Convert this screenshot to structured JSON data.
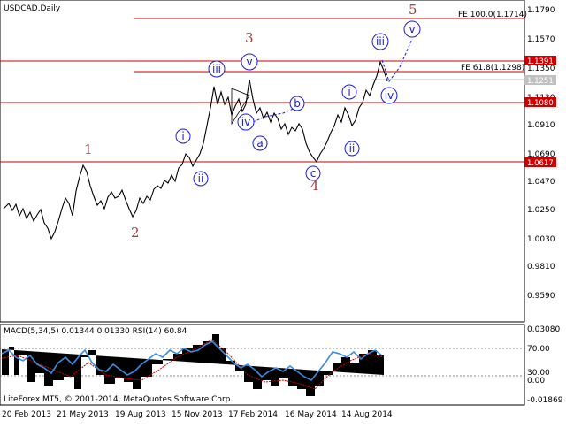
{
  "chart_title": "USDCAD,Daily",
  "price_axis": {
    "ticks": [
      "1.1790",
      "1.1570",
      "1.1350",
      "1.1130",
      "1.0910",
      "1.0690",
      "1.0470",
      "1.0250",
      "1.0030",
      "0.9810",
      "0.9590"
    ],
    "badges": [
      {
        "label": "1.1391",
        "color": "#cc0000"
      },
      {
        "label": "1.1251",
        "color": "#c0c0c0"
      },
      {
        "label": "1.1080",
        "color": "#cc0000"
      },
      {
        "label": "1.0617",
        "color": "#cc0000"
      }
    ]
  },
  "fib_labels": {
    "fe100": "FE 100.0(1.1714)",
    "fe618": "FE 61.8(1.1298)"
  },
  "wave_labels": {
    "major": [
      "1",
      "2",
      "3",
      "4",
      "5"
    ],
    "minor": [
      "i",
      "ii",
      "iii",
      "iv",
      "v",
      "a",
      "b",
      "c",
      "i",
      "ii",
      "iii",
      "iv",
      "v"
    ]
  },
  "indicator": {
    "label": "MACD(5,34,5) 0.01344 0.01330 RSI(14) 60.84",
    "ticks": [
      "0.03080",
      "70.00",
      "30.00",
      "0.00",
      "-0.01869"
    ]
  },
  "footer": "LiteForex MT5, © 2001-2014, MetaQuotes Software Corp.",
  "time_axis": [
    "20 Feb 2013",
    "21 May 2013",
    "19 Aug 2013",
    "15 Nov 2013",
    "17 Feb 2014",
    "16 May 2014",
    "14 Aug 2014"
  ],
  "colors": {
    "resistance_line": "#cc0000",
    "fib_line": "#cc0000",
    "wave_major": "#a83a3a",
    "wave_minor": "#1a1ad9",
    "rsi_line": "#3a8de0",
    "macd_hist": "#000000",
    "signal_line": "#cc0000"
  }
}
